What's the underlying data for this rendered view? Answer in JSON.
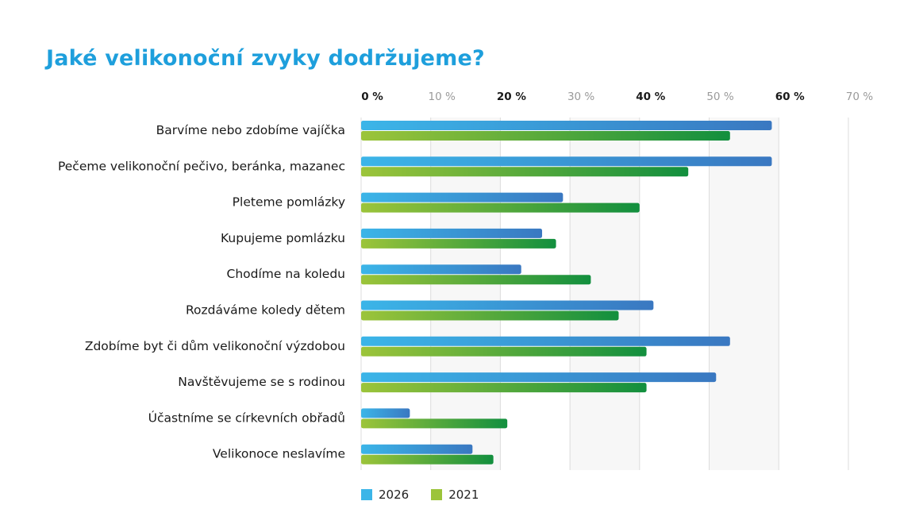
{
  "colors": {
    "title": "#1e9fdc",
    "s2026_start": "#3bb5e8",
    "s2026_end": "#3a78c1",
    "s2021_start": "#9cc43a",
    "s2021_end": "#128f3e",
    "grid": "#dcdcdc",
    "plot_bg": "#f7f7f7"
  },
  "chart_data": {
    "type": "bar",
    "orientation": "horizontal",
    "title": "Jaké velikonoční zvyky dodržujeme?",
    "categories": [
      "Barvíme nebo zdobíme vajíčka",
      "Pečeme velikonoční pečivo, beránka, mazanec",
      "Pleteme pomlázky",
      "Kupujeme pomlázku",
      "Chodíme na koledu",
      "Rozdáváme koledy dětem",
      "Zdobíme byt či dům velikonoční výzdobou",
      "Navštěvujeme se s rodinou",
      "Účastníme se církevních obřadů",
      "Velikonoce neslavíme"
    ],
    "series": [
      {
        "name": "2026",
        "values": [
          59,
          59,
          29,
          26,
          23,
          42,
          53,
          51,
          7,
          16
        ]
      },
      {
        "name": "2021",
        "values": [
          53,
          47,
          40,
          28,
          33,
          37,
          41,
          41,
          21,
          19
        ]
      }
    ],
    "xlim": [
      0,
      70
    ],
    "ticks": [
      "0 %",
      "10 %",
      "20 %",
      "30 %",
      "40 %",
      "50 %",
      "60 %",
      "70 %"
    ],
    "tick_values": [
      0,
      10,
      20,
      30,
      40,
      50,
      60,
      70
    ],
    "axis_position": "top",
    "grid": true,
    "legend_position": "bottom"
  }
}
